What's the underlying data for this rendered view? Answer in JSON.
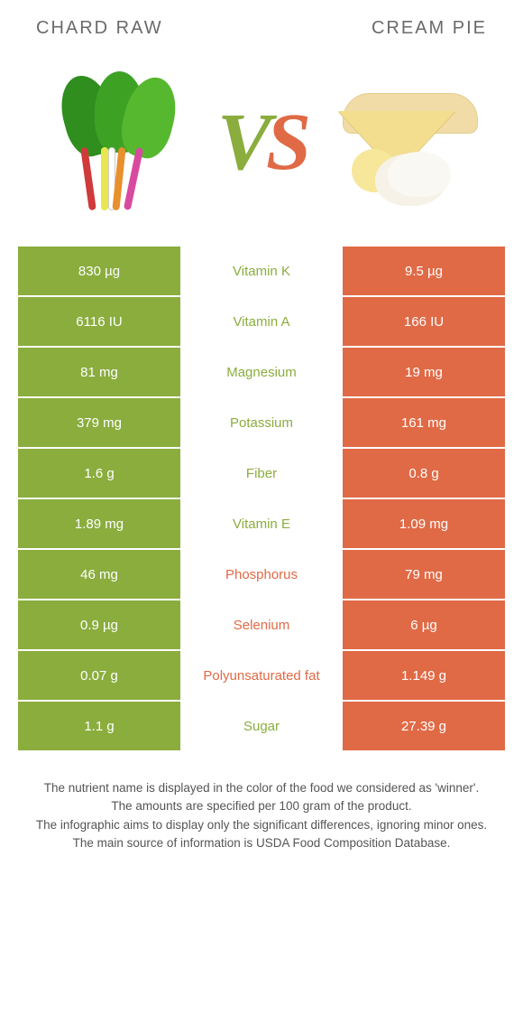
{
  "left_title": "Chard raw",
  "right_title": "Cream pie",
  "vs_v": "V",
  "vs_s": "S",
  "colors": {
    "green": "#8aad3e",
    "orange": "#e06a46"
  },
  "rows": [
    {
      "left": "830 µg",
      "mid": "Vitamin K",
      "right": "9.5 µg",
      "winner": "left"
    },
    {
      "left": "6116 IU",
      "mid": "Vitamin A",
      "right": "166 IU",
      "winner": "left"
    },
    {
      "left": "81 mg",
      "mid": "Magnesium",
      "right": "19 mg",
      "winner": "left"
    },
    {
      "left": "379 mg",
      "mid": "Potassium",
      "right": "161 mg",
      "winner": "left"
    },
    {
      "left": "1.6 g",
      "mid": "Fiber",
      "right": "0.8 g",
      "winner": "left"
    },
    {
      "left": "1.89 mg",
      "mid": "Vitamin E",
      "right": "1.09 mg",
      "winner": "left"
    },
    {
      "left": "46 mg",
      "mid": "Phosphorus",
      "right": "79 mg",
      "winner": "right"
    },
    {
      "left": "0.9 µg",
      "mid": "Selenium",
      "right": "6 µg",
      "winner": "right"
    },
    {
      "left": "0.07 g",
      "mid": "Polyunsaturated fat",
      "right": "1.149 g",
      "winner": "right"
    },
    {
      "left": "1.1 g",
      "mid": "Sugar",
      "right": "27.39 g",
      "winner": "left"
    }
  ],
  "footnotes": [
    "The nutrient name is displayed in the color of the food we considered as 'winner'.",
    "The amounts are specified per 100 gram of the product.",
    "The infographic aims to display only the significant differences, ignoring minor ones.",
    "The main source of information is USDA Food Composition Database."
  ]
}
